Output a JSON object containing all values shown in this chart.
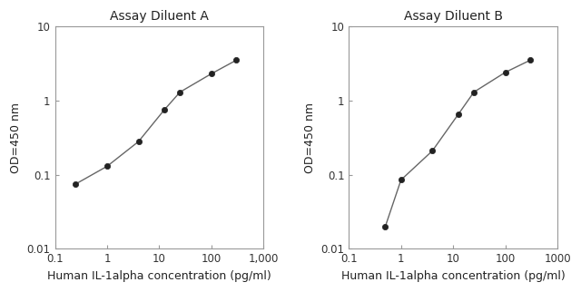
{
  "chart_A": {
    "title": "Assay Diluent A",
    "x": [
      0.25,
      1.0,
      4.0,
      12.5,
      25.0,
      100.0,
      300.0
    ],
    "y": [
      0.075,
      0.13,
      0.28,
      0.75,
      1.3,
      2.3,
      3.5
    ],
    "xlim": [
      0.1,
      1000
    ],
    "ylim": [
      0.01,
      10
    ],
    "xtick_vals": [
      0.1,
      1,
      10,
      100,
      1000
    ],
    "xtick_labels": [
      "0.1",
      "1",
      "10",
      "100",
      "1,000"
    ],
    "ytick_vals": [
      0.01,
      0.1,
      1,
      10
    ],
    "ytick_labels": [
      "0.01",
      "0.1",
      "1",
      "10"
    ],
    "xlabel": "Human IL-1alpha concentration (pg/ml)",
    "ylabel": "OD=450 nm"
  },
  "chart_B": {
    "title": "Assay Diluent B",
    "x": [
      0.5,
      1.0,
      4.0,
      12.5,
      25.0,
      100.0,
      300.0
    ],
    "y": [
      0.02,
      0.085,
      0.21,
      0.65,
      1.3,
      2.4,
      3.5
    ],
    "xlim": [
      0.1,
      1000
    ],
    "ylim": [
      0.01,
      10
    ],
    "xtick_vals": [
      0.1,
      1,
      10,
      100,
      1000
    ],
    "xtick_labels": [
      "0.1",
      "1",
      "10",
      "100",
      "1000"
    ],
    "ytick_vals": [
      0.01,
      0.1,
      1,
      10
    ],
    "ytick_labels": [
      "0.01",
      "0.1",
      "1",
      "10"
    ],
    "xlabel": "Human IL-1alpha concentration (pg/ml)",
    "ylabel": "OD=450 nm"
  },
  "line_color": "#666666",
  "marker_color": "#222222",
  "marker_size": 4.5,
  "line_width": 1.0,
  "title_fontsize": 10,
  "label_fontsize": 9,
  "tick_fontsize": 8.5,
  "spine_color": "#999999",
  "background_color": "#ffffff"
}
